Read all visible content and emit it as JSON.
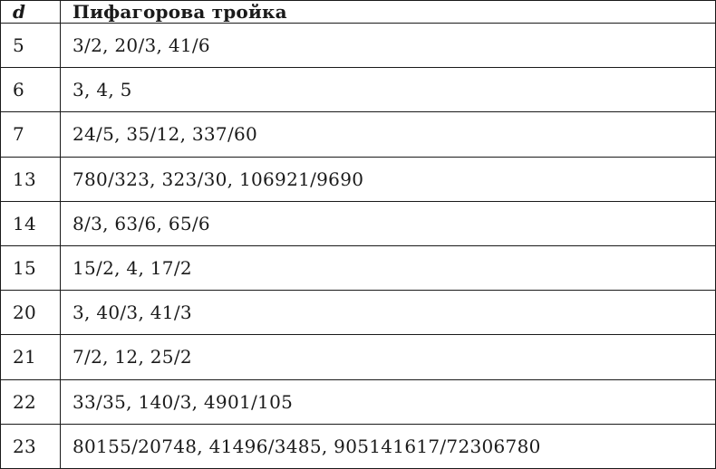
{
  "table": {
    "header": {
      "d": "d",
      "triple": "Пифагорова тройка"
    },
    "rows": [
      {
        "d": "5",
        "triple": "3/2, 20/3, 41/6"
      },
      {
        "d": "6",
        "triple": "3, 4, 5"
      },
      {
        "d": "7",
        "triple": "24/5, 35/12, 337/60"
      },
      {
        "d": "13",
        "triple": "780/323, 323/30, 106921/9690"
      },
      {
        "d": "14",
        "triple": "8/3, 63/6, 65/6"
      },
      {
        "d": "15",
        "triple": "15/2, 4, 17/2"
      },
      {
        "d": "20",
        "triple": "3, 40/3, 41/3"
      },
      {
        "d": "21",
        "triple": "7/2, 12, 25/2"
      },
      {
        "d": "22",
        "triple": "33/35, 140/3, 4901/105"
      },
      {
        "d": "23",
        "triple": "80155/20748, 41496/3485, 905141617/72306780"
      }
    ],
    "colors": {
      "border": "#1a1a1a",
      "text": "#1a1a1a",
      "background": "#ffffff"
    }
  }
}
